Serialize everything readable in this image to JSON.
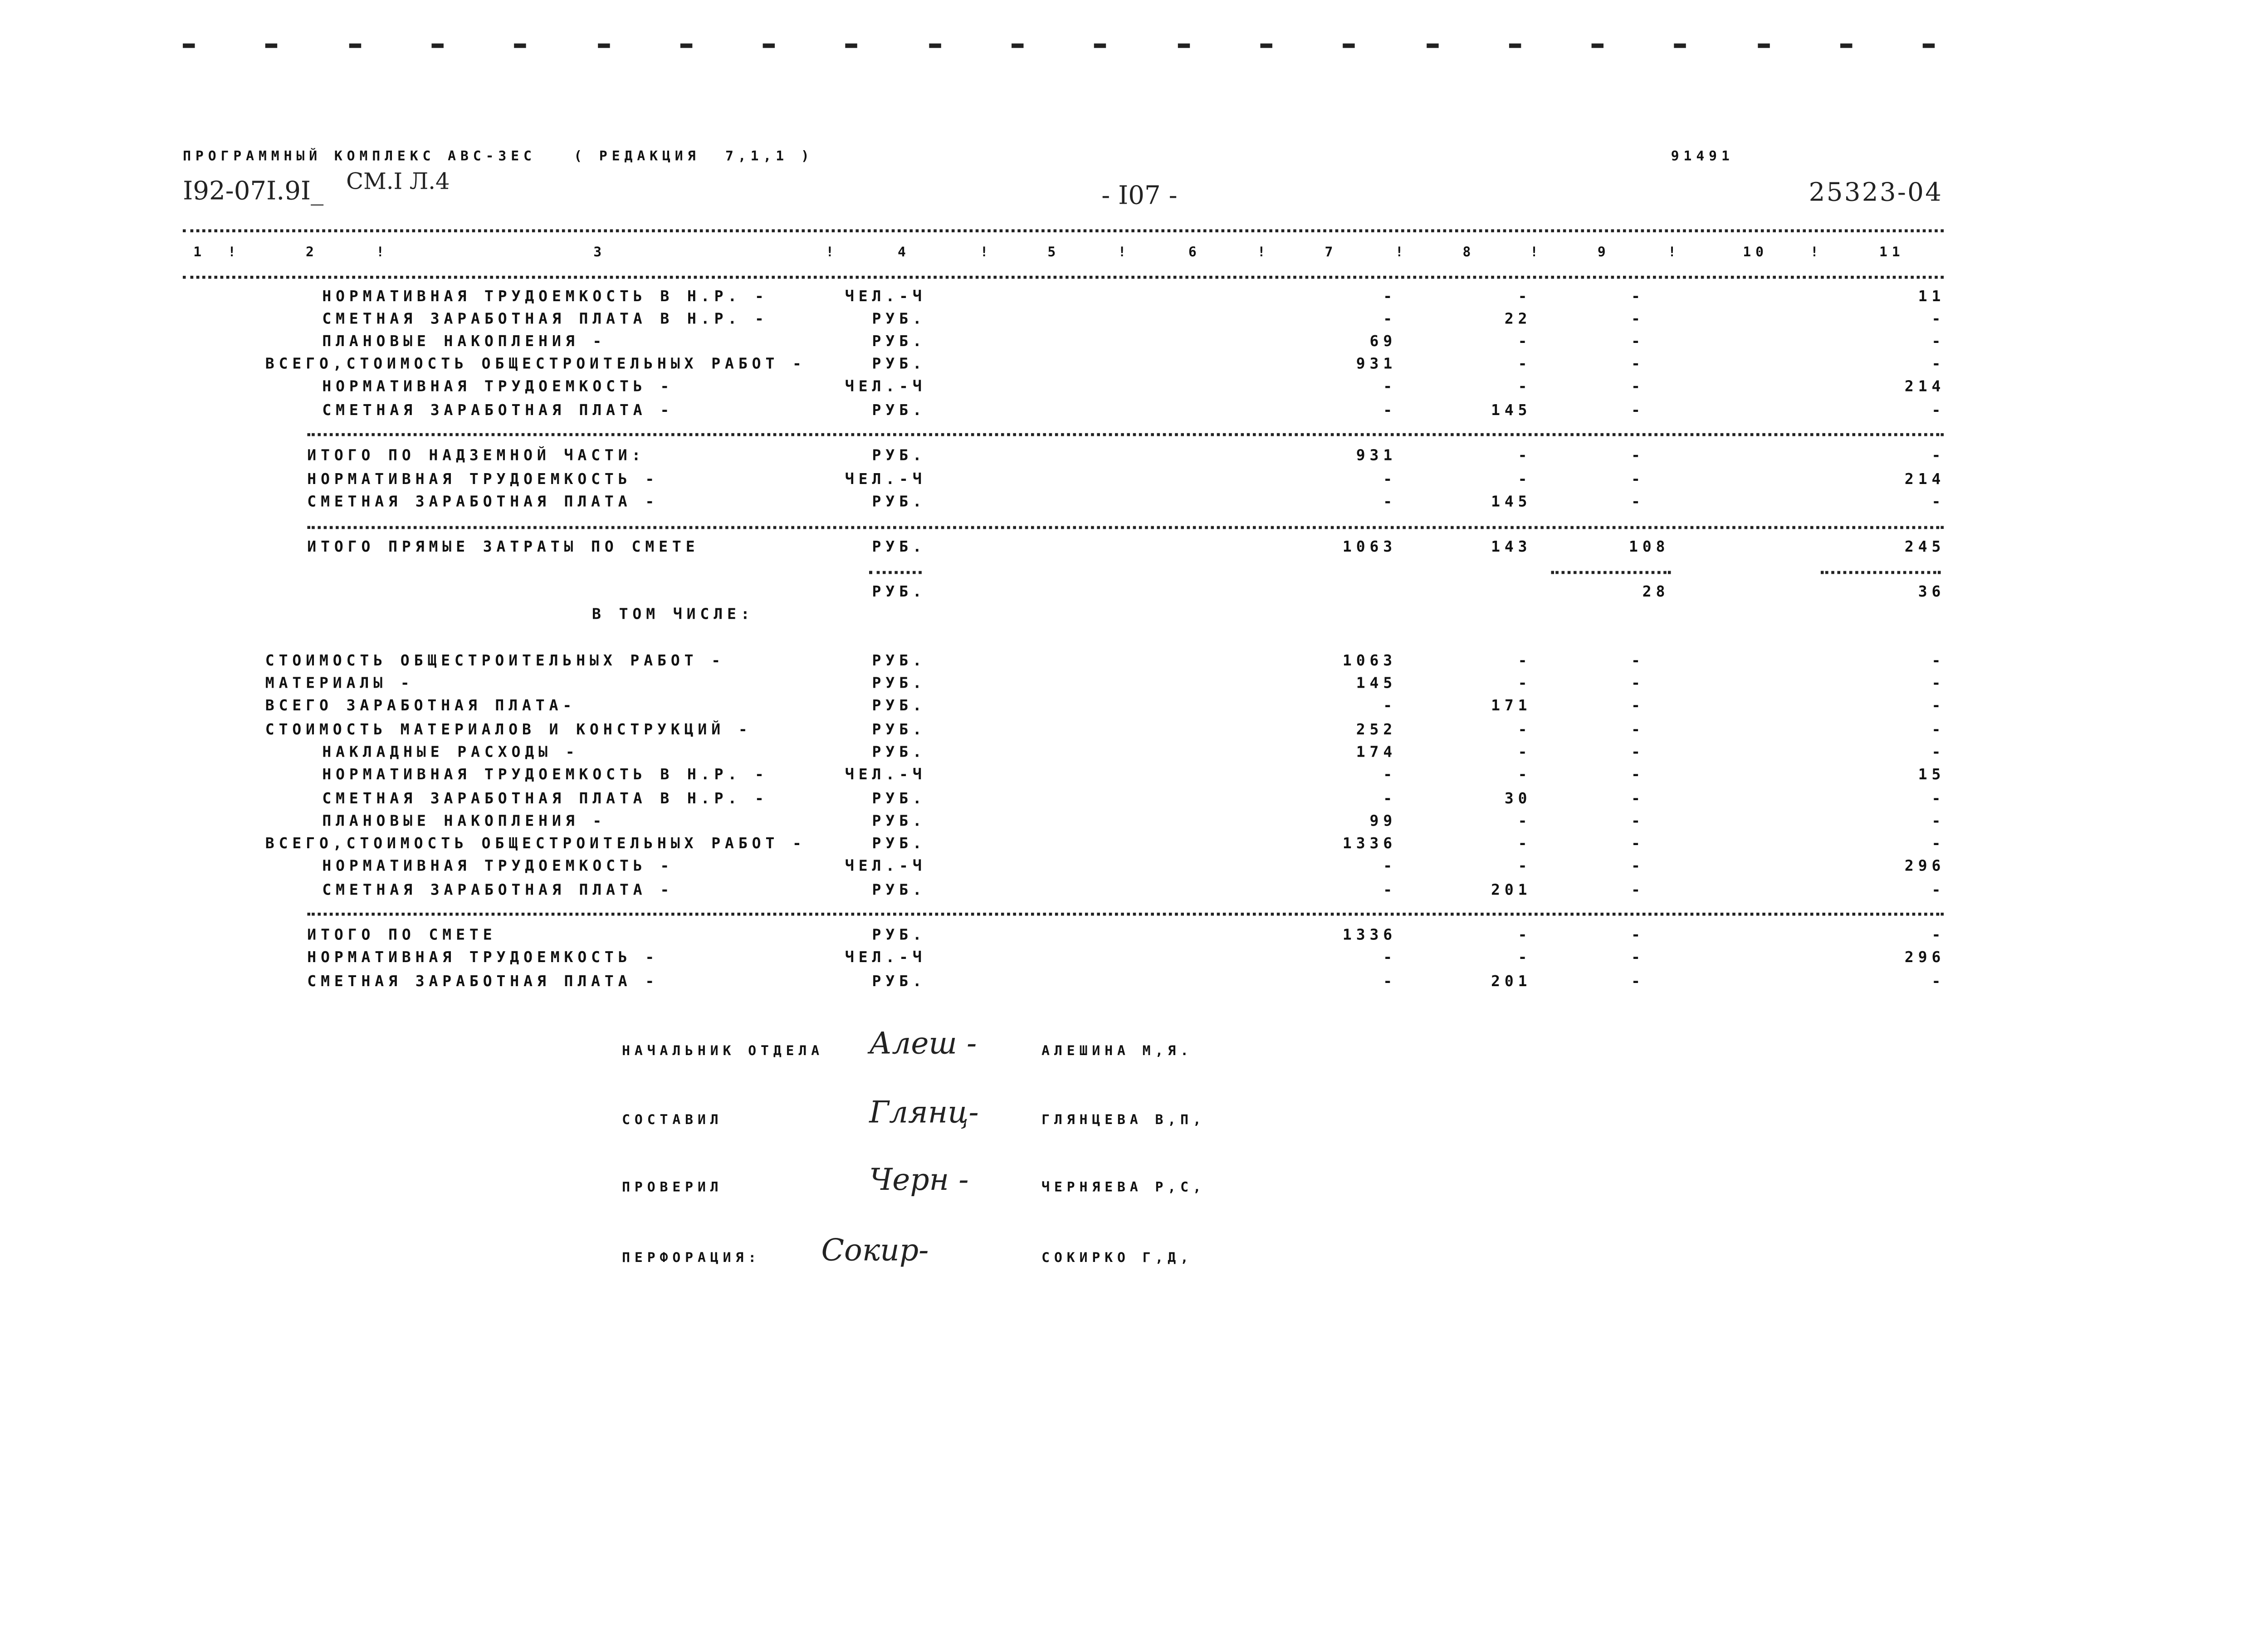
{
  "header": {
    "program_line": "ПРОГРАММНЫЙ КОМПЛЕКС АВС-3ЕС   ( РЕДАКЦИЯ  7,1,1 )",
    "doc_code": "91491",
    "sheet_code": "I92-07I.9I_",
    "sheet_ref": "СМ.I Л.4",
    "page_number": "- I07 -",
    "project_number": "25323-04"
  },
  "column_headers": [
    "1",
    "!",
    "2",
    "!",
    "3",
    "!",
    "4",
    "!",
    "5",
    "!",
    "6",
    "!",
    "7",
    "!",
    "8",
    "!",
    "9",
    "!",
    "10",
    "!",
    "11"
  ],
  "rows": [
    {
      "label": "НОРМАТИВНАЯ ТРУДОЕМКОСТЬ В Н.Р. -",
      "indent": 2,
      "unit": "ЧЕЛ.-Ч",
      "c7": "-",
      "c8": "-",
      "c9": "-",
      "c11": "11"
    },
    {
      "label": "СМЕТНАЯ ЗАРАБОТНАЯ ПЛАТА В Н.Р. -",
      "indent": 2,
      "unit": "РУБ.",
      "c7": "-",
      "c8": "22",
      "c9": "-",
      "c11": "-"
    },
    {
      "label": "ПЛАНОВЫЕ НАКОПЛЕНИЯ -",
      "indent": 2,
      "unit": "РУБ.",
      "c7": "69",
      "c8": "-",
      "c9": "-",
      "c11": "-"
    },
    {
      "label": "ВСЕГО,СТОИМОСТЬ ОБЩЕСТРОИТЕЛЬНЫХ РАБОТ -",
      "indent": 0,
      "unit": "РУБ.",
      "c7": "931",
      "c8": "-",
      "c9": "-",
      "c11": "-"
    },
    {
      "label": "НОРМАТИВНАЯ ТРУДОЕМКОСТЬ -",
      "indent": 2,
      "unit": "ЧЕЛ.-Ч",
      "c7": "-",
      "c8": "-",
      "c9": "-",
      "c11": "214"
    },
    {
      "label": "СМЕТНАЯ ЗАРАБОТНАЯ ПЛАТА -",
      "indent": 2,
      "unit": "РУБ.",
      "c7": "-",
      "c8": "145",
      "c9": "-",
      "c11": "-"
    },
    {
      "label": "ИТОГО ПО НАДЗЕМНОЙ ЧАСТИ:",
      "indent": 1,
      "unit": "РУБ.",
      "c7": "931",
      "c8": "-",
      "c9": "-",
      "c11": "-"
    },
    {
      "label": "НОРМАТИВНАЯ ТРУДОЕМКОСТЬ -",
      "indent": 1,
      "unit": "ЧЕЛ.-Ч",
      "c7": "-",
      "c8": "-",
      "c9": "-",
      "c11": "214"
    },
    {
      "label": "СМЕТНАЯ ЗАРАБОТНАЯ ПЛАТА -",
      "indent": 1,
      "unit": "РУБ.",
      "c7": "-",
      "c8": "145",
      "c9": "-",
      "c11": "-"
    },
    {
      "label": "ИТОГО ПРЯМЫЕ ЗАТРАТЫ ПО СМЕТЕ",
      "indent": 1,
      "unit": "РУБ.",
      "c7": "1063",
      "c8": "143",
      "c9": "108",
      "c11": "245"
    },
    {
      "label": "",
      "indent": 1,
      "unit": "РУБ.",
      "c7": "",
      "c8": "",
      "c9": "28",
      "c11": "36"
    },
    {
      "label": "СТОИМОСТЬ ОБЩЕСТРОИТЕЛЬНЫХ РАБОТ -",
      "indent": 0,
      "unit": "РУБ.",
      "c7": "1063",
      "c8": "-",
      "c9": "-",
      "c11": "-"
    },
    {
      "label": "МАТЕРИАЛЫ -",
      "indent": 0,
      "unit": "РУБ.",
      "c7": "145",
      "c8": "-",
      "c9": "-",
      "c11": "-"
    },
    {
      "label": "ВСЕГО ЗАРАБОТНАЯ ПЛАТА-",
      "indent": 0,
      "unit": "РУБ.",
      "c7": "-",
      "c8": "171",
      "c9": "-",
      "c11": "-"
    },
    {
      "label": "СТОИМОСТЬ МАТЕРИАЛОВ И КОНСТРУКЦИЙ -",
      "indent": 0,
      "unit": "РУБ.",
      "c7": "252",
      "c8": "-",
      "c9": "-",
      "c11": "-"
    },
    {
      "label": "НАКЛАДНЫЕ РАСХОДЫ -",
      "indent": 2,
      "unit": "РУБ.",
      "c7": "174",
      "c8": "-",
      "c9": "-",
      "c11": "-"
    },
    {
      "label": "НОРМАТИВНАЯ ТРУДОЕМКОСТЬ В Н.Р. -",
      "indent": 2,
      "unit": "ЧЕЛ.-Ч",
      "c7": "-",
      "c8": "-",
      "c9": "-",
      "c11": "15"
    },
    {
      "label": "СМЕТНАЯ ЗАРАБОТНАЯ ПЛАТА В Н.Р. -",
      "indent": 2,
      "unit": "РУБ.",
      "c7": "-",
      "c8": "30",
      "c9": "-",
      "c11": "-"
    },
    {
      "label": "ПЛАНОВЫЕ НАКОПЛЕНИЯ -",
      "indent": 2,
      "unit": "РУБ.",
      "c7": "99",
      "c8": "-",
      "c9": "-",
      "c11": "-"
    },
    {
      "label": "ВСЕГО,СТОИМОСТЬ ОБЩЕСТРОИТЕЛЬНЫХ РАБОТ -",
      "indent": 0,
      "unit": "РУБ.",
      "c7": "1336",
      "c8": "-",
      "c9": "-",
      "c11": "-"
    },
    {
      "label": "НОРМАТИВНАЯ ТРУДОЕМКОСТЬ -",
      "indent": 2,
      "unit": "ЧЕЛ.-Ч",
      "c7": "-",
      "c8": "-",
      "c9": "-",
      "c11": "296"
    },
    {
      "label": "СМЕТНАЯ ЗАРАБОТНАЯ ПЛАТА -",
      "indent": 2,
      "unit": "РУБ.",
      "c7": "-",
      "c8": "201",
      "c9": "-",
      "c11": "-"
    },
    {
      "label": "ИТОГО ПО СМЕТЕ",
      "indent": 1,
      "unit": "РУБ.",
      "c7": "1336",
      "c8": "-",
      "c9": "-",
      "c11": "-"
    },
    {
      "label": "НОРМАТИВНАЯ ТРУДОЕМКОСТЬ -",
      "indent": 1,
      "unit": "ЧЕЛ.-Ч",
      "c7": "-",
      "c8": "-",
      "c9": "-",
      "c11": "296"
    },
    {
      "label": "СМЕТНАЯ ЗАРАБОТНАЯ ПЛАТА -",
      "indent": 1,
      "unit": "РУБ.",
      "c7": "-",
      "c8": "201",
      "c9": "-",
      "c11": "-"
    }
  ],
  "subheading": "В ТОМ ЧИСЛЕ:",
  "signatures": [
    {
      "role": "НАЧАЛЬНИК ОТДЕЛА",
      "signature": "Алеш -",
      "name": "АЛЕШИНА М,Я."
    },
    {
      "role": "СОСТАВИЛ",
      "signature": "Глянц-",
      "name": "ГЛЯНЦЕВА В,П,"
    },
    {
      "role": "ПРОВЕРИЛ",
      "signature": "Черн -",
      "name": "ЧЕРНЯЕВА Р,С,"
    },
    {
      "role": "ПЕРФОРАЦИЯ:",
      "signature": "Сокир-",
      "name": "СОКИРКО Г,Д,"
    }
  ]
}
